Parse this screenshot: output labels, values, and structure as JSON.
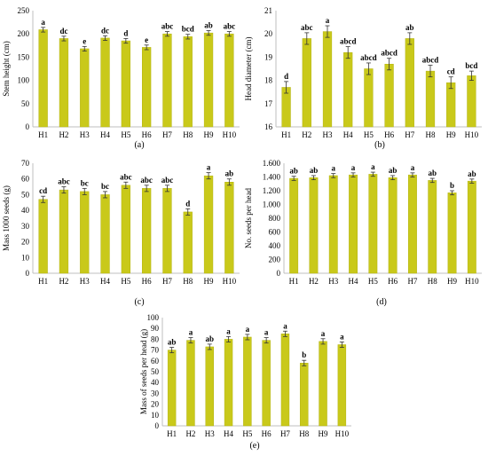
{
  "colors": {
    "bar": "#c9c91a",
    "bar_edge": "#b3b314",
    "axis": "#bfbfbf",
    "text": "#000000"
  },
  "chart_data": [
    {
      "panel": "(a)",
      "type": "bar",
      "categories": [
        "H1",
        "H2",
        "H3",
        "H4",
        "H5",
        "H6",
        "H7",
        "H8",
        "H9",
        "H10"
      ],
      "values": [
        209,
        190,
        168,
        191,
        185,
        171,
        200,
        194,
        202,
        200
      ],
      "errors": [
        5,
        5,
        5,
        5,
        5,
        5,
        5,
        5,
        5,
        5
      ],
      "labels": [
        "a",
        "dc",
        "e",
        "dc",
        "d",
        "e",
        "abc",
        "bcd",
        "ab",
        "abc"
      ],
      "xlabel": "",
      "ylabel": "Stem height (cm)",
      "ylim": [
        0,
        250
      ],
      "yticks": [
        0,
        50,
        100,
        150,
        200,
        250
      ],
      "tick_format": "plain"
    },
    {
      "panel": "(b)",
      "type": "bar",
      "categories": [
        "H1",
        "H2",
        "H3",
        "H4",
        "H5",
        "H6",
        "H7",
        "H8",
        "H9",
        "H10"
      ],
      "values": [
        17.7,
        19.8,
        20.1,
        19.2,
        18.5,
        18.7,
        19.8,
        18.4,
        17.9,
        18.2
      ],
      "errors": [
        0.25,
        0.25,
        0.25,
        0.25,
        0.25,
        0.25,
        0.25,
        0.25,
        0.25,
        0.2
      ],
      "labels": [
        "d",
        "abc",
        "a",
        "abcd",
        "abcd",
        "abcd",
        "ab",
        "abcd",
        "cd",
        "bcd"
      ],
      "xlabel": "",
      "ylabel": "Head diameter (cm)",
      "ylim": [
        16,
        21
      ],
      "yticks": [
        16,
        17,
        18,
        19,
        20,
        21
      ],
      "tick_format": "plain"
    },
    {
      "panel": "(c)",
      "type": "bar",
      "categories": [
        "H1",
        "H2",
        "H3",
        "H4",
        "H5",
        "H6",
        "H7",
        "H8",
        "H9",
        "H10"
      ],
      "values": [
        47,
        53,
        52,
        50,
        56,
        54,
        54,
        39,
        62,
        58
      ],
      "errors": [
        2,
        2,
        2,
        2,
        2,
        2,
        2,
        2,
        2,
        2
      ],
      "labels": [
        "cd",
        "abc",
        "bc",
        "bc",
        "abc",
        "abc",
        "abc",
        "d",
        "a",
        "ab"
      ],
      "xlabel": "",
      "ylabel": "Mass 1000 seeds (g)",
      "ylim": [
        0,
        70
      ],
      "yticks": [
        0,
        10,
        20,
        30,
        40,
        50,
        60,
        70
      ],
      "tick_format": "plain"
    },
    {
      "panel": "(d)",
      "type": "bar",
      "categories": [
        "H1",
        "H2",
        "H3",
        "H4",
        "H5",
        "H6",
        "H7",
        "H8",
        "H9",
        "H10"
      ],
      "values": [
        1380,
        1390,
        1420,
        1430,
        1440,
        1390,
        1430,
        1350,
        1170,
        1340
      ],
      "errors": [
        30,
        30,
        30,
        30,
        30,
        30,
        30,
        30,
        30,
        30
      ],
      "labels": [
        "ab",
        "ab",
        "a",
        "a",
        "a",
        "ab",
        "a",
        "ab",
        "b",
        "ab"
      ],
      "xlabel": "",
      "ylabel": "No. seeds per head",
      "ylim": [
        0,
        1600
      ],
      "yticks": [
        0,
        200,
        400,
        600,
        800,
        1000,
        1200,
        1400,
        1600
      ],
      "tick_format": "thousands"
    },
    {
      "panel": "(e)",
      "type": "bar",
      "categories": [
        "H1",
        "H2",
        "H3",
        "H4",
        "H5",
        "H6",
        "H7",
        "H8",
        "H9",
        "H10"
      ],
      "values": [
        70,
        79,
        73,
        80,
        82,
        79,
        85,
        58,
        78,
        75
      ],
      "errors": [
        2.5,
        2.5,
        2.5,
        2.5,
        2.5,
        2.5,
        2.5,
        2.5,
        2.5,
        2.5
      ],
      "labels": [
        "ab",
        "a",
        "ab",
        "a",
        "a",
        "a",
        "a",
        "b",
        "a",
        "a"
      ],
      "xlabel": "",
      "ylabel": "Mass of seeds per head (g)",
      "ylim": [
        0,
        100
      ],
      "yticks": [
        0,
        10,
        20,
        30,
        40,
        50,
        60,
        70,
        80,
        90,
        100
      ],
      "tick_format": "plain"
    }
  ]
}
